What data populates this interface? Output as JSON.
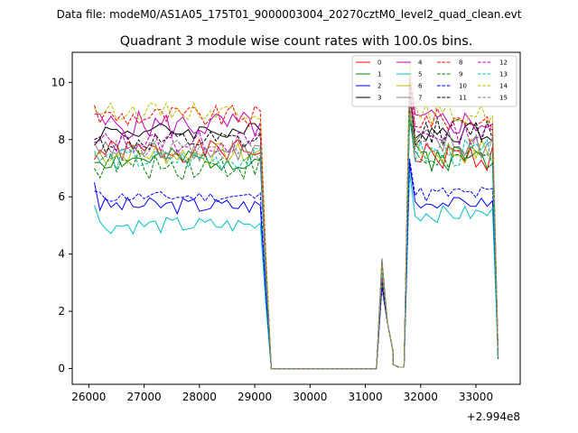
{
  "chart_data": {
    "type": "line",
    "suptitle": "Data file: modeM0/AS1A05_175T01_9000003004_20270cztM0_level2_quad_clean.evt",
    "title": "Quadrant 3 module wise count rates with 100.0s bins.",
    "xlabel": "",
    "ylabel": "",
    "offset_label": "+2.994e8",
    "xlim": [
      25700,
      33800
    ],
    "ylim": [
      -0.55,
      11.05
    ],
    "xticks": [
      26000,
      27000,
      28000,
      29000,
      30000,
      31000,
      32000,
      33000
    ],
    "xtick_labels": [
      "26000",
      "27000",
      "28000",
      "29000",
      "30000",
      "31000",
      "32000",
      "33000"
    ],
    "yticks": [
      0,
      2,
      4,
      6,
      8,
      10
    ],
    "ytick_labels": [
      "0",
      "2",
      "4",
      "6",
      "8",
      "10"
    ],
    "legend_position": "upper right",
    "gap": {
      "last_before": 29100,
      "drop": 29200,
      "zero_start": 29300,
      "zero_end": 31200,
      "peak_x": 31300,
      "peak_y": 3.7,
      "dip_x": 31600,
      "dip_y": 0.05,
      "zero2_end": 31700,
      "resume": 31800,
      "end_x": 33400
    },
    "series": [
      {
        "name": "0",
        "color": "#ff0000",
        "dash": "solid",
        "level1": 7.6,
        "amp1": 0.4,
        "level2": 7.4,
        "amp2": 0.5,
        "start": 7.3,
        "seed": 1
      },
      {
        "name": "1",
        "color": "#008000",
        "dash": "solid",
        "level1": 7.3,
        "amp1": 0.4,
        "level2": 7.4,
        "amp2": 0.5,
        "start": 7.2,
        "seed": 2
      },
      {
        "name": "2",
        "color": "#0000ff",
        "dash": "solid",
        "level1": 5.7,
        "amp1": 0.3,
        "level2": 5.8,
        "amp2": 0.2,
        "start": 6.5,
        "seed": 3
      },
      {
        "name": "3",
        "color": "#000000",
        "dash": "solid",
        "level1": 8.3,
        "amp1": 0.3,
        "level2": 8.3,
        "amp2": 0.4,
        "start": 7.8,
        "seed": 4
      },
      {
        "name": "4",
        "color": "#bf00bf",
        "dash": "solid",
        "level1": 8.5,
        "amp1": 0.5,
        "level2": 8.6,
        "amp2": 0.5,
        "start": 8.9,
        "seed": 5
      },
      {
        "name": "5",
        "color": "#00bfbf",
        "dash": "solid",
        "level1": 5.0,
        "amp1": 0.3,
        "level2": 5.4,
        "amp2": 0.3,
        "start": 5.7,
        "seed": 6
      },
      {
        "name": "6",
        "color": "#bfbf00",
        "dash": "solid",
        "level1": 7.5,
        "amp1": 0.4,
        "level2": 7.6,
        "amp2": 0.5,
        "start": 7.4,
        "seed": 7
      },
      {
        "name": "7",
        "color": "#808080",
        "dash": "solid",
        "level1": 7.6,
        "amp1": 0.4,
        "level2": 7.8,
        "amp2": 0.6,
        "start": 7.9,
        "seed": 8
      },
      {
        "name": "8",
        "color": "#ff0000",
        "dash": "dashed",
        "level1": 8.8,
        "amp1": 0.4,
        "level2": 8.7,
        "amp2": 0.4,
        "start": 9.2,
        "seed": 9
      },
      {
        "name": "9",
        "color": "#008000",
        "dash": "dashed",
        "level1": 7.1,
        "amp1": 0.5,
        "level2": 7.3,
        "amp2": 0.5,
        "start": 7.0,
        "seed": 10
      },
      {
        "name": "10",
        "color": "#0000ff",
        "dash": "dashed",
        "level1": 6.0,
        "amp1": 0.2,
        "level2": 6.1,
        "amp2": 0.3,
        "start": 6.2,
        "seed": 11
      },
      {
        "name": "11",
        "color": "#000000",
        "dash": "dashed",
        "level1": 7.9,
        "amp1": 0.4,
        "level2": 8.3,
        "amp2": 0.5,
        "start": 8.0,
        "seed": 12
      },
      {
        "name": "12",
        "color": "#bf00bf",
        "dash": "dashed",
        "level1": 7.9,
        "amp1": 0.4,
        "level2": 8.2,
        "amp2": 0.4,
        "start": 7.9,
        "seed": 13
      },
      {
        "name": "13",
        "color": "#00bfbf",
        "dash": "dashed",
        "level1": 7.3,
        "amp1": 0.4,
        "level2": 7.5,
        "amp2": 0.5,
        "start": 7.6,
        "seed": 14
      },
      {
        "name": "14",
        "color": "#bfbf00",
        "dash": "dashed",
        "level1": 9.0,
        "amp1": 0.3,
        "level2": 8.9,
        "amp2": 0.4,
        "start": 9.1,
        "seed": 15
      },
      {
        "name": "15",
        "color": "#808080",
        "dash": "dashed",
        "level1": 7.6,
        "amp1": 0.4,
        "level2": 7.8,
        "amp2": 0.5,
        "start": 7.5,
        "seed": 16
      }
    ]
  }
}
